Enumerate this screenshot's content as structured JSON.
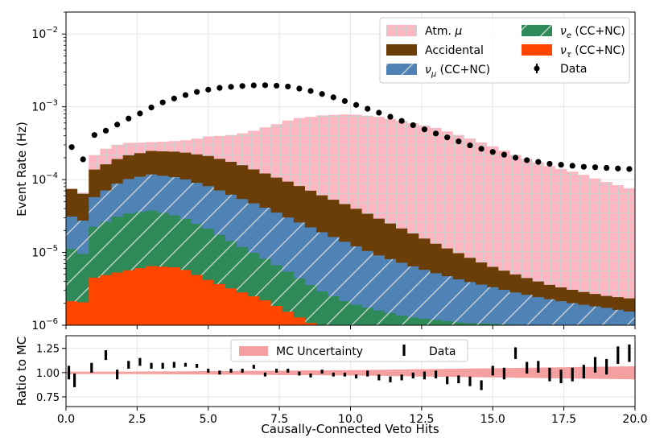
{
  "chart_data": [
    {
      "type": "area",
      "stacked": true,
      "xscale": "linear",
      "yscale": "log",
      "xlim": [
        0,
        20
      ],
      "ylim": [
        1e-06,
        0.02
      ],
      "ylabel": "Event Rate (Hz)",
      "y_ticks": [
        {
          "value": 1e-06,
          "base": "10",
          "exp": "−6"
        },
        {
          "value": 1e-05,
          "base": "10",
          "exp": "−5"
        },
        {
          "value": 0.0001,
          "base": "10",
          "exp": "−4"
        },
        {
          "value": 0.001,
          "base": "10",
          "exp": "−3"
        },
        {
          "value": 0.01,
          "base": "10",
          "exp": "−2"
        }
      ],
      "legend_position": "top-right",
      "series": [
        {
          "name": "Atm. μ",
          "legend_base": "Atm. ",
          "legend_sym": "μ",
          "legend_sub": "",
          "legend_tail": "",
          "color": "#ffb6c1",
          "pattern": "grid",
          "anchors": [
            [
              0,
              1e-06
            ],
            [
              0.5,
              1e-06
            ],
            [
              1,
              8e-05
            ],
            [
              1.5,
              0.00011
            ],
            [
              2,
              0.00011
            ],
            [
              3,
              8e-05
            ],
            [
              4,
              0.0001
            ],
            [
              5,
              0.00018
            ],
            [
              6,
              0.00025
            ],
            [
              7,
              0.0004
            ],
            [
              8,
              0.0006
            ],
            [
              9,
              0.0007
            ],
            [
              10,
              0.00075
            ],
            [
              11,
              0.0007
            ],
            [
              12,
              0.0006
            ],
            [
              13,
              0.0005
            ],
            [
              14,
              0.00038
            ],
            [
              15,
              0.00028
            ],
            [
              16,
              0.0002
            ],
            [
              17,
              0.00015
            ],
            [
              18,
              0.00012
            ],
            [
              19,
              9e-05
            ],
            [
              20,
              7e-05
            ]
          ]
        },
        {
          "name": "Accidental",
          "legend_base": "Accidental",
          "legend_sym": "",
          "legend_sub": "",
          "legend_tail": "",
          "color": "#6b3e07",
          "pattern": "solid",
          "anchors": [
            [
              0,
              5.5e-05
            ],
            [
              0.5,
              3e-05
            ],
            [
              1,
              8e-05
            ],
            [
              2,
              0.00011
            ],
            [
              3,
              0.00013
            ],
            [
              4,
              0.000135
            ],
            [
              5,
              0.00013
            ],
            [
              6,
              0.00011
            ],
            [
              7,
              8e-05
            ],
            [
              8,
              6e-05
            ],
            [
              9,
              4.2e-05
            ],
            [
              10,
              3e-05
            ],
            [
              11,
              2e-05
            ],
            [
              12,
              1.3e-05
            ],
            [
              13,
              8e-06
            ],
            [
              14,
              5e-06
            ],
            [
              15,
              3e-06
            ],
            [
              16,
              2e-06
            ],
            [
              17,
              1.3e-06
            ],
            [
              18,
              1e-06
            ],
            [
              19,
              8e-07
            ],
            [
              20,
              8e-07
            ]
          ]
        },
        {
          "name": "νμ (CC+NC)",
          "legend_base": "",
          "legend_sym": "ν",
          "legend_sub": "μ",
          "legend_tail": " (CC+NC)",
          "color": "#4f83b6",
          "pattern": "diag",
          "anchors": [
            [
              0,
              2.4e-05
            ],
            [
              0.5,
              1.5e-05
            ],
            [
              1,
              3.5e-05
            ],
            [
              2,
              6.5e-05
            ],
            [
              3,
              8e-05
            ],
            [
              4,
              7.5e-05
            ],
            [
              5,
              6e-05
            ],
            [
              6,
              4.5e-05
            ],
            [
              7,
              3.3e-05
            ],
            [
              8,
              2.3e-05
            ],
            [
              9,
              1.6e-05
            ],
            [
              10,
              1.1e-05
            ],
            [
              11,
              7.5e-06
            ],
            [
              12,
              5.5e-06
            ],
            [
              13,
              4e-06
            ],
            [
              14,
              3e-06
            ],
            [
              15,
              2.3e-06
            ],
            [
              16,
              1.7e-06
            ],
            [
              17,
              1.3e-06
            ],
            [
              18,
              1e-06
            ],
            [
              19,
              8e-07
            ],
            [
              20,
              6e-07
            ]
          ]
        },
        {
          "name": "νe (CC+NC)",
          "legend_base": "",
          "legend_sym": "ν",
          "legend_sub": "e",
          "legend_tail": " (CC+NC)",
          "color": "#2e8b57",
          "pattern": "diag",
          "anchors": [
            [
              0,
              1.2e-05
            ],
            [
              0.5,
              6e-06
            ],
            [
              1,
              1.8e-05
            ],
            [
              2,
              2.8e-05
            ],
            [
              3,
              3.1e-05
            ],
            [
              4,
              2.5e-05
            ],
            [
              5,
              1.7e-05
            ],
            [
              6,
              1e-05
            ],
            [
              7,
              6e-06
            ],
            [
              8,
              3.5e-06
            ],
            [
              9,
              2e-06
            ],
            [
              10,
              1.3e-06
            ],
            [
              11,
              1e-06
            ],
            [
              12,
              8e-07
            ],
            [
              13,
              7e-07
            ],
            [
              14,
              6e-07
            ],
            [
              20,
              5e-07
            ]
          ]
        },
        {
          "name": "ντ (CC+NC)",
          "legend_base": "",
          "legend_sym": "ν",
          "legend_sub": "τ",
          "legend_tail": " (CC+NC)",
          "color": "#ff4500",
          "pattern": "solid",
          "anchors": [
            [
              0,
              2.5e-06
            ],
            [
              0.5,
              1.7e-06
            ],
            [
              1,
              4.5e-06
            ],
            [
              2,
              5.5e-06
            ],
            [
              3,
              6.5e-06
            ],
            [
              4,
              6.2e-06
            ],
            [
              5,
              4.2e-06
            ],
            [
              6,
              3e-06
            ],
            [
              7,
              2.2e-06
            ],
            [
              8,
              1.4e-06
            ],
            [
              9,
              9e-07
            ],
            [
              10,
              7e-07
            ],
            [
              12,
              5e-07
            ],
            [
              20,
              4e-07
            ]
          ]
        }
      ],
      "data": {
        "name": "Data",
        "x": [
          0.2,
          0.6,
          1.0,
          1.4,
          1.8,
          2.2,
          2.6,
          3.0,
          3.4,
          3.8,
          4.2,
          4.6,
          5.0,
          5.4,
          5.8,
          6.2,
          6.6,
          7.0,
          7.4,
          7.8,
          8.2,
          8.6,
          9.0,
          9.4,
          9.8,
          10.2,
          10.6,
          11.0,
          11.4,
          11.8,
          12.2,
          12.6,
          13.0,
          13.4,
          13.8,
          14.2,
          14.6,
          15.0,
          15.4,
          15.8,
          16.2,
          16.6,
          17.0,
          17.4,
          17.8,
          18.2,
          18.6,
          19.0,
          19.4,
          19.8
        ],
        "y": [
          0.00028,
          0.00019,
          0.00041,
          0.00047,
          0.00057,
          0.00069,
          0.00081,
          0.00098,
          0.00115,
          0.0013,
          0.00145,
          0.0016,
          0.00172,
          0.00182,
          0.00188,
          0.00193,
          0.00197,
          0.00198,
          0.00195,
          0.0019,
          0.00178,
          0.00165,
          0.0015,
          0.00135,
          0.0012,
          0.00106,
          0.00094,
          0.00083,
          0.00073,
          0.00064,
          0.00056,
          0.00049,
          0.00043,
          0.00038,
          0.000335,
          0.000295,
          0.000265,
          0.00024,
          0.00022,
          0.0002,
          0.000185,
          0.000175,
          0.000165,
          0.00016,
          0.000155,
          0.00015,
          0.000148,
          0.000145,
          0.000142,
          0.00014
        ]
      }
    },
    {
      "type": "scatter",
      "xlabel": "Causally-Connected Veto Hits",
      "ylabel": "Ratio to MC",
      "xlim": [
        0,
        20
      ],
      "ylim": [
        0.65,
        1.38
      ],
      "x_ticks": [
        0.0,
        2.5,
        5.0,
        7.5,
        10.0,
        12.5,
        15.0,
        17.5,
        20.0
      ],
      "x_tick_labels": [
        "0.0",
        "2.5",
        "5.0",
        "7.5",
        "10.0",
        "12.5",
        "15.0",
        "17.5",
        "20.0"
      ],
      "y_ticks": [
        0.75,
        1.0,
        1.25
      ],
      "y_tick_labels": [
        "0.75",
        "1.00",
        "1.25"
      ],
      "legend_position": "top-center",
      "uncertainty_band": {
        "name": "MC Uncertainty",
        "color": "#f4a0a0",
        "x": [
          0,
          2.5,
          5,
          7.5,
          10,
          12.5,
          15,
          17.5,
          20
        ],
        "lo": [
          0.985,
          0.985,
          0.98,
          0.975,
          0.97,
          0.96,
          0.95,
          0.94,
          0.93
        ],
        "hi": [
          1.01,
          1.01,
          1.015,
          1.02,
          1.025,
          1.035,
          1.045,
          1.055,
          1.065
        ]
      },
      "data": {
        "name": "Data",
        "x": [
          0.1,
          0.3,
          0.9,
          1.4,
          1.8,
          2.2,
          2.6,
          3.0,
          3.4,
          3.8,
          4.2,
          4.6,
          5.0,
          5.4,
          5.8,
          6.2,
          6.6,
          7.0,
          7.4,
          7.8,
          8.2,
          8.6,
          9.0,
          9.4,
          9.8,
          10.2,
          10.6,
          11.0,
          11.4,
          11.8,
          12.2,
          12.6,
          13.0,
          13.4,
          13.8,
          14.2,
          14.6,
          15.0,
          15.4,
          15.8,
          16.2,
          16.6,
          17.0,
          17.4,
          17.8,
          18.2,
          18.6,
          19.0,
          19.4,
          19.8
        ],
        "y": [
          1.0,
          0.92,
          1.05,
          1.18,
          0.98,
          1.08,
          1.11,
          1.07,
          1.07,
          1.08,
          1.08,
          1.07,
          1.02,
          1.0,
          1.02,
          1.02,
          1.06,
          0.98,
          1.02,
          1.02,
          0.99,
          0.97,
          1.01,
          0.98,
          0.98,
          0.96,
          0.99,
          0.95,
          0.93,
          0.95,
          0.97,
          0.97,
          0.98,
          0.92,
          0.93,
          0.91,
          0.87,
          1.02,
          0.99,
          1.2,
          1.05,
          1.06,
          0.98,
          0.96,
          0.98,
          1.01,
          1.08,
          1.06,
          1.18,
          1.2
        ],
        "err": [
          0.07,
          0.07,
          0.05,
          0.05,
          0.05,
          0.04,
          0.04,
          0.03,
          0.03,
          0.03,
          0.02,
          0.02,
          0.02,
          0.02,
          0.02,
          0.02,
          0.02,
          0.02,
          0.02,
          0.02,
          0.02,
          0.02,
          0.02,
          0.02,
          0.02,
          0.02,
          0.03,
          0.03,
          0.03,
          0.03,
          0.03,
          0.04,
          0.04,
          0.04,
          0.04,
          0.05,
          0.05,
          0.05,
          0.06,
          0.06,
          0.06,
          0.06,
          0.07,
          0.07,
          0.07,
          0.07,
          0.08,
          0.08,
          0.09,
          0.09
        ]
      }
    }
  ]
}
